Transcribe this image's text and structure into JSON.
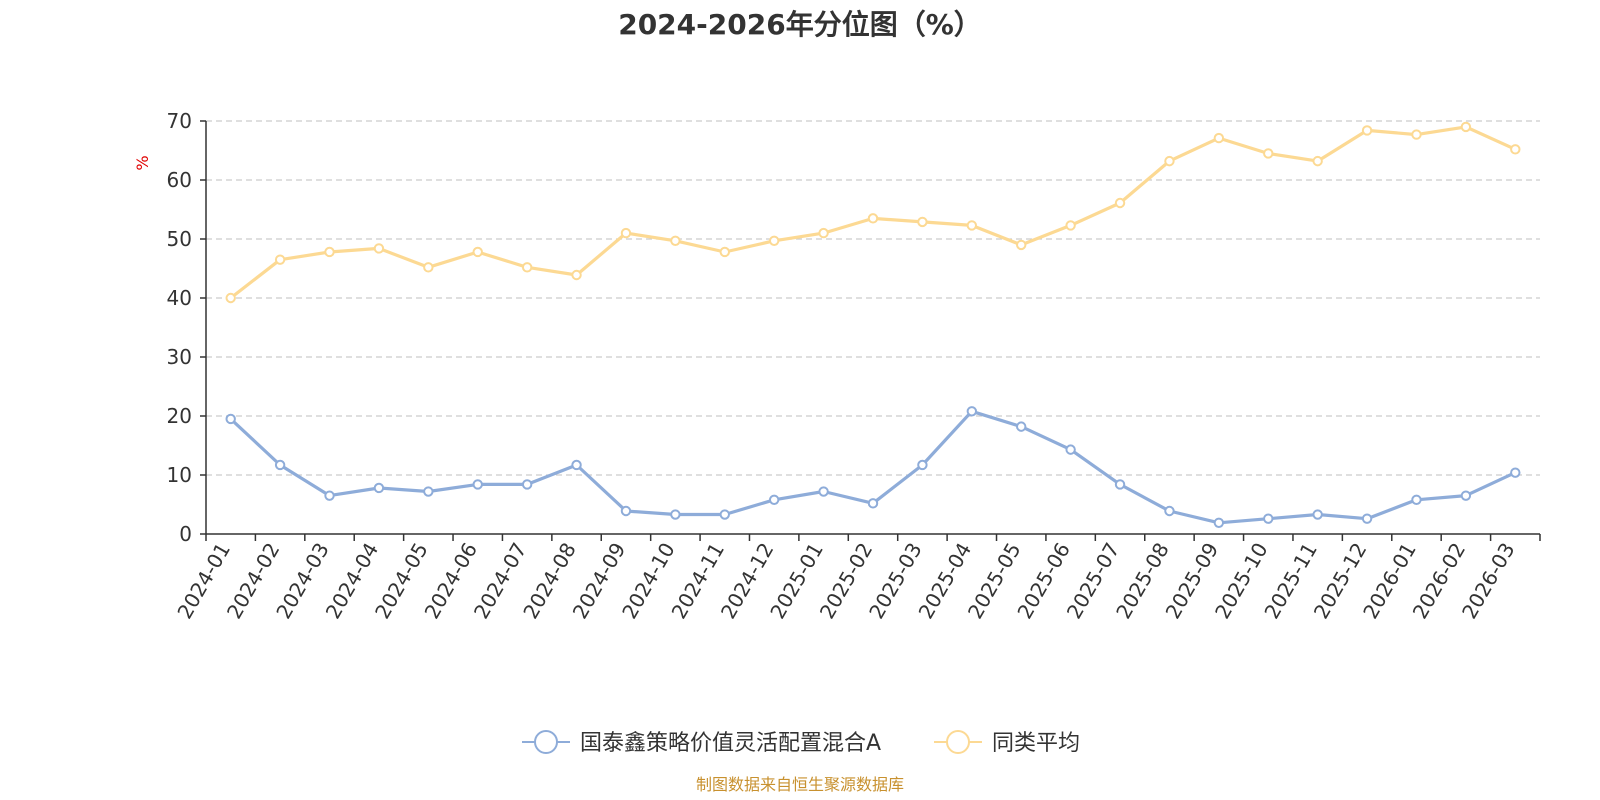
{
  "chart_data": {
    "type": "line",
    "title": "2024-2026年分位图（%）",
    "ylabel": "%",
    "xlabel": "",
    "ylim": [
      0,
      70
    ],
    "yticks": [
      0,
      10,
      20,
      30,
      40,
      50,
      60,
      70
    ],
    "grid": true,
    "legend_position": "bottom-center",
    "categories": [
      "2024-01",
      "2024-02",
      "2024-03",
      "2024-04",
      "2024-05",
      "2024-06",
      "2024-07",
      "2024-08",
      "2024-09",
      "2024-10",
      "2024-11",
      "2024-12",
      "2025-01",
      "2025-02",
      "2025-03",
      "2025-04",
      "2025-05",
      "2025-06",
      "2025-07",
      "2025-08",
      "2025-09",
      "2025-10",
      "2025-11",
      "2025-12",
      "2026-01",
      "2026-02",
      "2026-03"
    ],
    "series": [
      {
        "name": "国泰鑫策略价值灵活配置混合A",
        "color": "#8eacd9",
        "values": [
          19.5,
          11.7,
          6.5,
          7.8,
          7.2,
          8.4,
          8.4,
          11.7,
          3.9,
          3.3,
          3.3,
          5.8,
          7.2,
          5.2,
          11.7,
          20.8,
          18.2,
          14.3,
          8.4,
          3.9,
          1.9,
          2.6,
          3.3,
          2.6,
          5.8,
          6.5,
          10.4
        ]
      },
      {
        "name": "同类平均",
        "color": "#fcd993",
        "values": [
          40.0,
          46.5,
          47.8,
          48.4,
          45.2,
          47.8,
          45.2,
          43.9,
          51.0,
          49.7,
          47.8,
          49.7,
          51.0,
          53.5,
          52.9,
          52.3,
          49.0,
          52.3,
          56.1,
          63.2,
          67.1,
          64.5,
          63.2,
          68.4,
          67.7,
          69.0,
          65.2
        ]
      }
    ],
    "source": "制图数据来自恒生聚源数据库",
    "source_color": "#c8912f",
    "unit_color": "#e00000"
  }
}
